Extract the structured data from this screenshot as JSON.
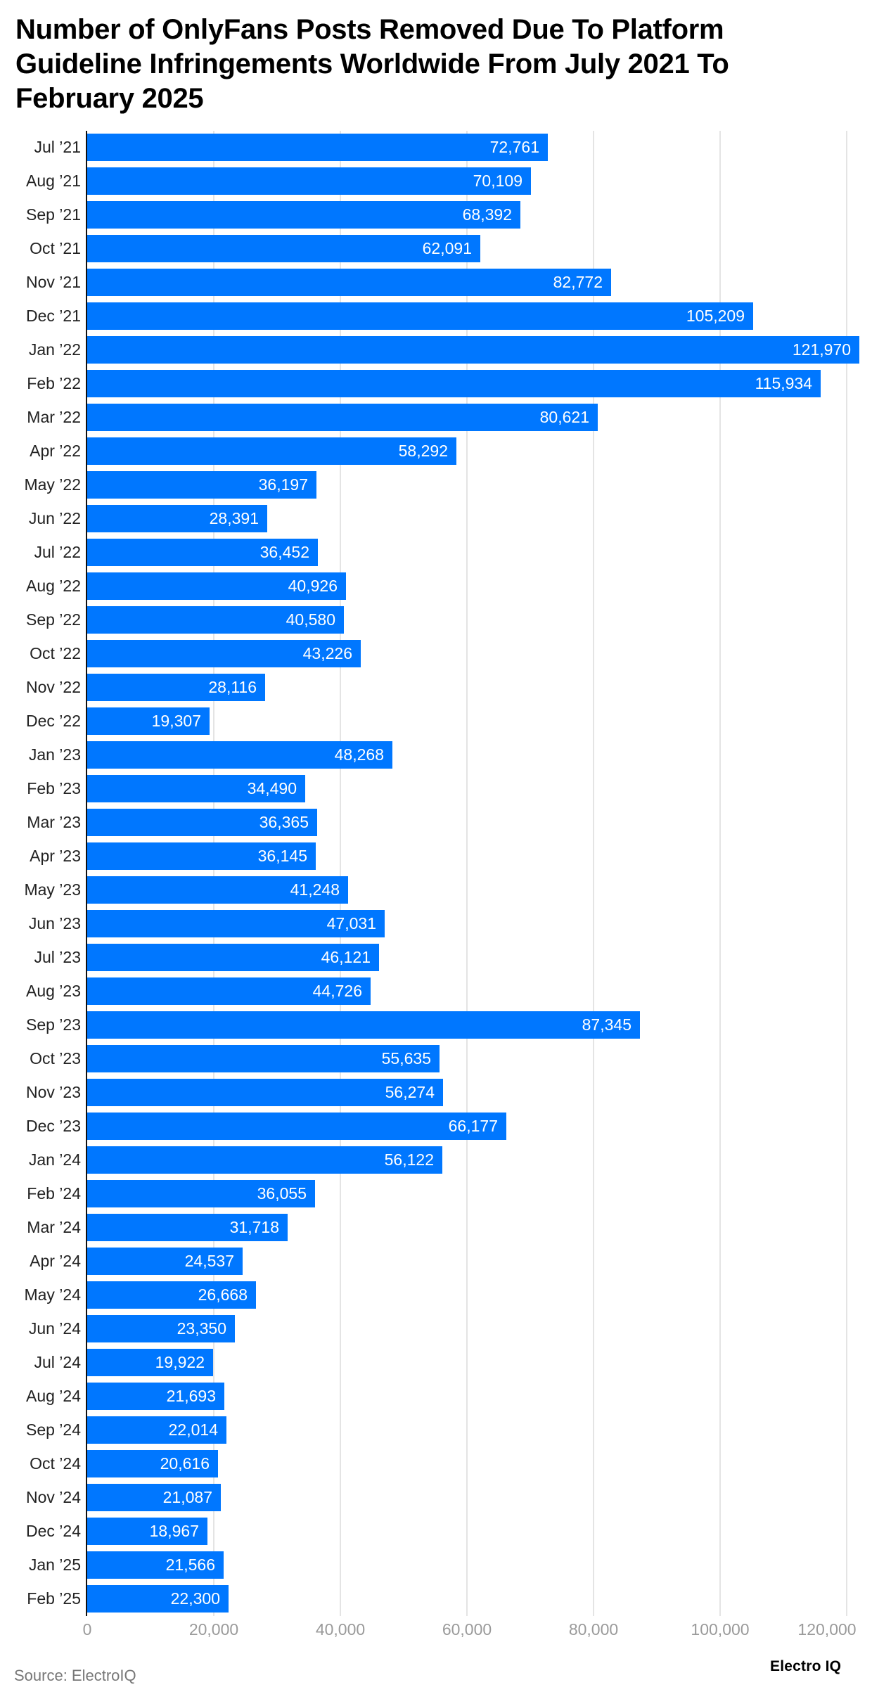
{
  "title": "Number of OnlyFans Posts Removed Due To Platform Guideline Infringements Worldwide From July 2021 To February 2025",
  "footer": {
    "source": "Source: ElectroIQ",
    "logo": "Electro IQ"
  },
  "colors": {
    "bar": "#0077ff",
    "gridline": "#e4e4e4",
    "axis": "#111111",
    "tick_label": "#9a9a9a"
  },
  "chart_data": {
    "type": "bar",
    "orientation": "horizontal",
    "title": "Number of OnlyFans Posts Removed Due To Platform Guideline Infringements Worldwide From July 2021 To February 2025",
    "xlabel": "",
    "ylabel": "",
    "xlim": [
      0,
      120000
    ],
    "xticks": [
      0,
      20000,
      40000,
      60000,
      80000,
      100000,
      120000
    ],
    "xtick_labels": [
      "0",
      "20,000",
      "40,000",
      "60,000",
      "80,000",
      "100,000",
      "120,000"
    ],
    "grid": true,
    "legend": null,
    "categories": [
      "Jul ’21",
      "Aug ’21",
      "Sep ’21",
      "Oct ’21",
      "Nov ’21",
      "Dec ’21",
      "Jan ’22",
      "Feb ’22",
      "Mar ’22",
      "Apr ’22",
      "May ’22",
      "Jun ’22",
      "Jul ’22",
      "Aug ’22",
      "Sep ’22",
      "Oct ’22",
      "Nov ’22",
      "Dec ’22",
      "Jan ’23",
      "Feb ’23",
      "Mar ’23",
      "Apr ’23",
      "May ’23",
      "Jun ’23",
      "Jul ’23",
      "Aug ’23",
      "Sep ’23",
      "Oct ’23",
      "Nov ’23",
      "Dec ’23",
      "Jan ’24",
      "Feb ’24",
      "Mar ’24",
      "Apr ’24",
      "May ’24",
      "Jun ’24",
      "Jul ’24",
      "Aug ’24",
      "Sep ’24",
      "Oct ’24",
      "Nov ’24",
      "Dec ’24",
      "Jan ’25",
      "Feb ’25"
    ],
    "values": [
      72761,
      70109,
      68392,
      62091,
      82772,
      105209,
      121970,
      115934,
      80621,
      58292,
      36197,
      28391,
      36452,
      40926,
      40580,
      43226,
      28116,
      19307,
      48268,
      34490,
      36365,
      36145,
      41248,
      47031,
      46121,
      44726,
      87345,
      55635,
      56274,
      66177,
      56122,
      36055,
      31718,
      24537,
      26668,
      23350,
      19922,
      21693,
      22014,
      20616,
      21087,
      18967,
      21566,
      22300
    ],
    "value_labels": [
      "72,761",
      "70,109",
      "68,392",
      "62,091",
      "82,772",
      "105,209",
      "121,970",
      "115,934",
      "80,621",
      "58,292",
      "36,197",
      "28,391",
      "36,452",
      "40,926",
      "40,580",
      "43,226",
      "28,116",
      "19,307",
      "48,268",
      "34,490",
      "36,365",
      "36,145",
      "41,248",
      "47,031",
      "46,121",
      "44,726",
      "87,345",
      "55,635",
      "56,274",
      "66,177",
      "56,122",
      "36,055",
      "31,718",
      "24,537",
      "26,668",
      "23,350",
      "19,922",
      "21,693",
      "22,014",
      "20,616",
      "21,087",
      "18,967",
      "21,566",
      "22,300"
    ]
  }
}
